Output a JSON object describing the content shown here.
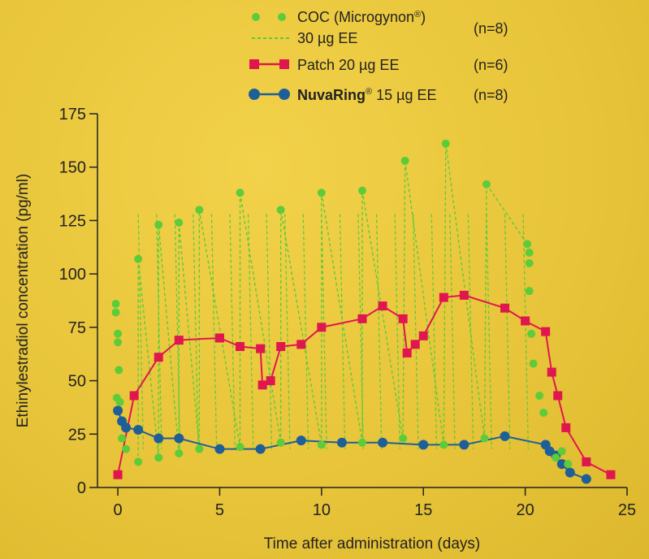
{
  "chart_data": {
    "type": "line",
    "xlabel": "Time after administration (days)",
    "ylabel": "Ethinylestradiol concentration (pg/ml)",
    "xlim": [
      -1,
      25
    ],
    "ylim": [
      0,
      175
    ],
    "x_ticks": [
      0,
      5,
      10,
      15,
      20,
      25
    ],
    "y_ticks": [
      0,
      25,
      50,
      75,
      100,
      125,
      150,
      175
    ],
    "grid": false,
    "legend": [
      {
        "name_main": "COC (Microgynon",
        "name_mark": "®",
        "name_tail": ")",
        "name_line2": "30 µg EE",
        "n": "(n=8)",
        "color": "#5ccc3a"
      },
      {
        "name_main": "Patch 20 µg EE",
        "n": "(n=6)",
        "color": "#e0164f"
      },
      {
        "name_main": "NuvaRing",
        "name_mark": "®",
        "name_tail": " 15 µg EE",
        "n": "(n=8)",
        "color": "#1f5f97"
      }
    ],
    "series": [
      {
        "name": "COC (Microgynon® 30 µg EE)",
        "style": "dotted",
        "color": "#5ccc3a",
        "points": [
          [
            -0.1,
            86
          ],
          [
            -0.1,
            82
          ],
          [
            0,
            72
          ],
          [
            0,
            68
          ],
          [
            0.05,
            55
          ],
          [
            -0.05,
            42
          ],
          [
            0.1,
            40
          ],
          [
            0.2,
            23
          ],
          [
            0.4,
            18
          ],
          [
            1,
            12
          ],
          [
            1,
            107
          ],
          [
            2,
            14
          ],
          [
            2,
            123
          ],
          [
            3,
            16
          ],
          [
            3,
            124
          ],
          [
            4,
            18
          ],
          [
            4,
            130
          ],
          [
            6,
            19
          ],
          [
            6,
            138
          ],
          [
            8,
            21
          ],
          [
            8,
            130
          ],
          [
            10,
            20
          ],
          [
            10,
            138
          ],
          [
            12,
            21
          ],
          [
            12,
            139
          ],
          [
            14,
            23
          ],
          [
            14.1,
            153
          ],
          [
            16,
            20
          ],
          [
            16.1,
            161
          ],
          [
            18,
            23
          ],
          [
            18.1,
            142
          ],
          [
            20.1,
            114
          ],
          [
            20.2,
            110
          ],
          [
            20.2,
            105
          ],
          [
            20.2,
            92
          ],
          [
            20.3,
            72
          ],
          [
            20.4,
            58
          ],
          [
            20.7,
            43
          ],
          [
            20.9,
            35
          ],
          [
            21.5,
            14
          ],
          [
            21.8,
            17
          ],
          [
            22.1,
            11
          ]
        ]
      },
      {
        "name": "Patch 20 µg EE",
        "style": "line-square",
        "color": "#e0164f",
        "points": [
          [
            0,
            6
          ],
          [
            0.8,
            43
          ],
          [
            2,
            61
          ],
          [
            3,
            69
          ],
          [
            5,
            70
          ],
          [
            6,
            66
          ],
          [
            7,
            65
          ],
          [
            7.1,
            48
          ],
          [
            7.5,
            50
          ],
          [
            8,
            66
          ],
          [
            9,
            67
          ],
          [
            10,
            75
          ],
          [
            12,
            79
          ],
          [
            13,
            85
          ],
          [
            14,
            79
          ],
          [
            14.2,
            63
          ],
          [
            14.6,
            67
          ],
          [
            15,
            71
          ],
          [
            16,
            89
          ],
          [
            17,
            90
          ],
          [
            19,
            84
          ],
          [
            20,
            78
          ],
          [
            21,
            73
          ],
          [
            21.3,
            54
          ],
          [
            21.6,
            43
          ],
          [
            22,
            28
          ],
          [
            23,
            12
          ],
          [
            24.2,
            6
          ]
        ]
      },
      {
        "name": "NuvaRing® 15 µg EE",
        "style": "line-circle",
        "color": "#1f5f97",
        "points": [
          [
            0,
            36
          ],
          [
            0.2,
            31
          ],
          [
            0.4,
            28
          ],
          [
            1,
            27
          ],
          [
            2,
            23
          ],
          [
            3,
            23
          ],
          [
            5,
            18
          ],
          [
            7,
            18
          ],
          [
            9,
            22
          ],
          [
            11,
            21
          ],
          [
            13,
            21
          ],
          [
            15,
            20
          ],
          [
            17,
            20
          ],
          [
            19,
            24
          ],
          [
            21,
            20
          ],
          [
            21.2,
            17
          ],
          [
            21.5,
            15
          ],
          [
            21.8,
            11
          ],
          [
            22.2,
            7
          ],
          [
            23,
            4
          ]
        ]
      }
    ]
  }
}
